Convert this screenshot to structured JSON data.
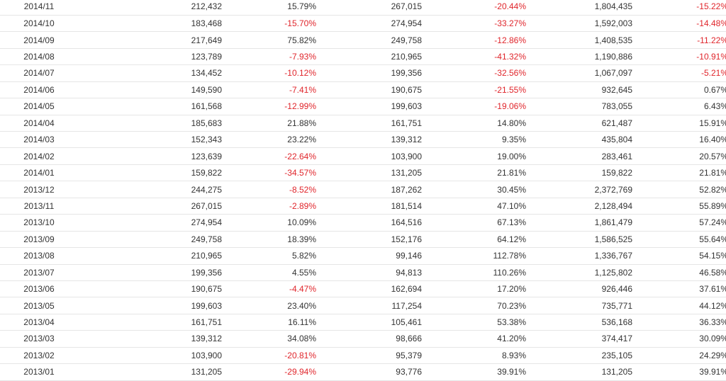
{
  "colors": {
    "negative": "#e0252b",
    "text": "#333333",
    "divider": "#e6e6e6"
  },
  "table": {
    "rows": [
      {
        "month": "2014/11",
        "v1": "212,432",
        "p1": "15.79%",
        "v2": "267,015",
        "p2": "-20.44%",
        "v3": "1,804,435",
        "p3": "-15.22%"
      },
      {
        "month": "2014/10",
        "v1": "183,468",
        "p1": "-15.70%",
        "v2": "274,954",
        "p2": "-33.27%",
        "v3": "1,592,003",
        "p3": "-14.48%"
      },
      {
        "month": "2014/09",
        "v1": "217,649",
        "p1": "75.82%",
        "v2": "249,758",
        "p2": "-12.86%",
        "v3": "1,408,535",
        "p3": "-11.22%"
      },
      {
        "month": "2014/08",
        "v1": "123,789",
        "p1": "-7.93%",
        "v2": "210,965",
        "p2": "-41.32%",
        "v3": "1,190,886",
        "p3": "-10.91%"
      },
      {
        "month": "2014/07",
        "v1": "134,452",
        "p1": "-10.12%",
        "v2": "199,356",
        "p2": "-32.56%",
        "v3": "1,067,097",
        "p3": "-5.21%"
      },
      {
        "month": "2014/06",
        "v1": "149,590",
        "p1": "-7.41%",
        "v2": "190,675",
        "p2": "-21.55%",
        "v3": "932,645",
        "p3": "0.67%"
      },
      {
        "month": "2014/05",
        "v1": "161,568",
        "p1": "-12.99%",
        "v2": "199,603",
        "p2": "-19.06%",
        "v3": "783,055",
        "p3": "6.43%"
      },
      {
        "month": "2014/04",
        "v1": "185,683",
        "p1": "21.88%",
        "v2": "161,751",
        "p2": "14.80%",
        "v3": "621,487",
        "p3": "15.91%"
      },
      {
        "month": "2014/03",
        "v1": "152,343",
        "p1": "23.22%",
        "v2": "139,312",
        "p2": "9.35%",
        "v3": "435,804",
        "p3": "16.40%"
      },
      {
        "month": "2014/02",
        "v1": "123,639",
        "p1": "-22.64%",
        "v2": "103,900",
        "p2": "19.00%",
        "v3": "283,461",
        "p3": "20.57%"
      },
      {
        "month": "2014/01",
        "v1": "159,822",
        "p1": "-34.57%",
        "v2": "131,205",
        "p2": "21.81%",
        "v3": "159,822",
        "p3": "21.81%"
      },
      {
        "month": "2013/12",
        "v1": "244,275",
        "p1": "-8.52%",
        "v2": "187,262",
        "p2": "30.45%",
        "v3": "2,372,769",
        "p3": "52.82%"
      },
      {
        "month": "2013/11",
        "v1": "267,015",
        "p1": "-2.89%",
        "v2": "181,514",
        "p2": "47.10%",
        "v3": "2,128,494",
        "p3": "55.89%"
      },
      {
        "month": "2013/10",
        "v1": "274,954",
        "p1": "10.09%",
        "v2": "164,516",
        "p2": "67.13%",
        "v3": "1,861,479",
        "p3": "57.24%"
      },
      {
        "month": "2013/09",
        "v1": "249,758",
        "p1": "18.39%",
        "v2": "152,176",
        "p2": "64.12%",
        "v3": "1,586,525",
        "p3": "55.64%"
      },
      {
        "month": "2013/08",
        "v1": "210,965",
        "p1": "5.82%",
        "v2": "99,146",
        "p2": "112.78%",
        "v3": "1,336,767",
        "p3": "54.15%"
      },
      {
        "month": "2013/07",
        "v1": "199,356",
        "p1": "4.55%",
        "v2": "94,813",
        "p2": "110.26%",
        "v3": "1,125,802",
        "p3": "46.58%"
      },
      {
        "month": "2013/06",
        "v1": "190,675",
        "p1": "-4.47%",
        "v2": "162,694",
        "p2": "17.20%",
        "v3": "926,446",
        "p3": "37.61%"
      },
      {
        "month": "2013/05",
        "v1": "199,603",
        "p1": "23.40%",
        "v2": "117,254",
        "p2": "70.23%",
        "v3": "735,771",
        "p3": "44.12%"
      },
      {
        "month": "2013/04",
        "v1": "161,751",
        "p1": "16.11%",
        "v2": "105,461",
        "p2": "53.38%",
        "v3": "536,168",
        "p3": "36.33%"
      },
      {
        "month": "2013/03",
        "v1": "139,312",
        "p1": "34.08%",
        "v2": "98,666",
        "p2": "41.20%",
        "v3": "374,417",
        "p3": "30.09%"
      },
      {
        "month": "2013/02",
        "v1": "103,900",
        "p1": "-20.81%",
        "v2": "95,379",
        "p2": "8.93%",
        "v3": "235,105",
        "p3": "24.29%"
      },
      {
        "month": "2013/01",
        "v1": "131,205",
        "p1": "-29.94%",
        "v2": "93,776",
        "p2": "39.91%",
        "v3": "131,205",
        "p3": "39.91%"
      }
    ]
  }
}
